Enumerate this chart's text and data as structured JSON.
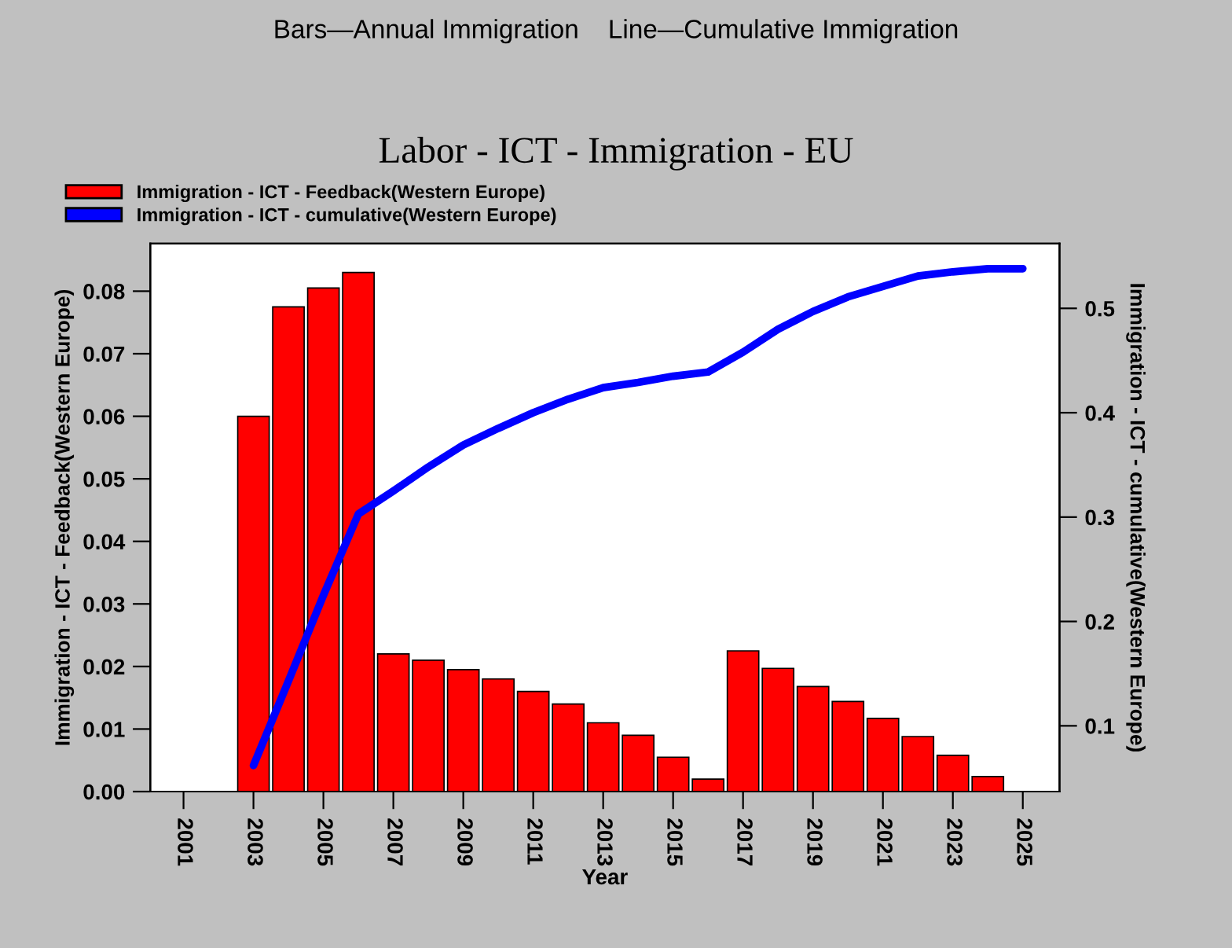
{
  "chart_data": {
    "type": "bar",
    "title": "Labor - ICT - Immigration - EU",
    "subtitle": "Bars—Annual Immigration    Line—Cumulative Immigration",
    "xlabel": "Year",
    "ylabel": "Immigration - ICT - Feedback(Western Europe)",
    "y2label": "Immigration - ICT - cumulative(Western Europe)",
    "xlim": [
      2000.05,
      2026.05
    ],
    "xticks": [
      2001,
      2003,
      2005,
      2007,
      2009,
      2011,
      2013,
      2015,
      2017,
      2019,
      2021,
      2023,
      2025
    ],
    "ylim": [
      0,
      0.0876
    ],
    "yticks": [
      {
        "value": 0,
        "label": "0.00"
      },
      {
        "value": 0.01,
        "label": "0.01"
      },
      {
        "value": 0.02,
        "label": "0.02"
      },
      {
        "value": 0.03,
        "label": "0.03"
      },
      {
        "value": 0.04,
        "label": "0.04"
      },
      {
        "value": 0.05,
        "label": "0.05"
      },
      {
        "value": 0.06,
        "label": "0.06"
      },
      {
        "value": 0.07,
        "label": "0.07"
      },
      {
        "value": 0.08,
        "label": "0.08"
      }
    ],
    "y2lim": [
      0.037,
      0.562
    ],
    "y2ticks": [
      0.1,
      0.2,
      0.3,
      0.4,
      0.5
    ],
    "legend": "top left",
    "grid": false,
    "series": [
      {
        "name": "Immigration - ICT - Feedback(Western Europe)",
        "color": "#ff0000",
        "x": [
          2003,
          2004,
          2005,
          2006,
          2007,
          2008,
          2009,
          2010,
          2011,
          2012,
          2013,
          2014,
          2015,
          2016,
          2017,
          2018,
          2019,
          2020,
          2021,
          2022,
          2023,
          2024
        ],
        "values": [
          0.06,
          0.0775,
          0.0805,
          0.083,
          0.022,
          0.021,
          0.0195,
          0.018,
          0.016,
          0.014,
          0.011,
          0.009,
          0.0055,
          0.002,
          0.0225,
          0.0197,
          0.0168,
          0.0144,
          0.0117,
          0.0088,
          0.0058,
          0.0024
        ]
      },
      {
        "name": "Immigration - ICT - cumulative(Western Europe)",
        "type": "line",
        "axis": "y2",
        "color": "#0000ff",
        "x": [
          2003,
          2004,
          2005,
          2006,
          2007,
          2008,
          2009,
          2010,
          2011,
          2012,
          2013,
          2014,
          2015,
          2016,
          2017,
          2018,
          2019,
          2020,
          2021,
          2022,
          2023,
          2024,
          2025
        ],
        "values": [
          0.062,
          0.143,
          0.225,
          0.303,
          0.325,
          0.348,
          0.369,
          0.385,
          0.4,
          0.413,
          0.424,
          0.429,
          0.435,
          0.439,
          0.458,
          0.48,
          0.497,
          0.511,
          0.521,
          0.531,
          0.535,
          0.538,
          0.538
        ]
      }
    ]
  }
}
